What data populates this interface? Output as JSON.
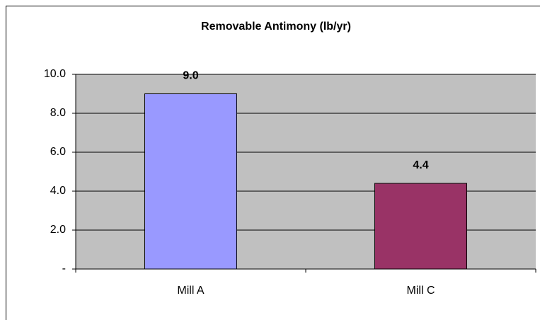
{
  "chart_data": {
    "type": "bar",
    "title": "Removable Antimony (lb/yr)",
    "categories": [
      "Mill A",
      "Mill C"
    ],
    "values": [
      9.0,
      4.4
    ],
    "value_labels": [
      "9.0",
      "4.4"
    ],
    "colors": [
      "#9999ff",
      "#993366"
    ],
    "ylim": [
      0,
      10
    ],
    "yticks": [
      {
        "value": 0,
        "label": "-"
      },
      {
        "value": 2,
        "label": "2.0"
      },
      {
        "value": 4,
        "label": "4.0"
      },
      {
        "value": 6,
        "label": "6.0"
      },
      {
        "value": 8,
        "label": "8.0"
      },
      {
        "value": 10,
        "label": "10.0"
      }
    ],
    "grid": true
  }
}
